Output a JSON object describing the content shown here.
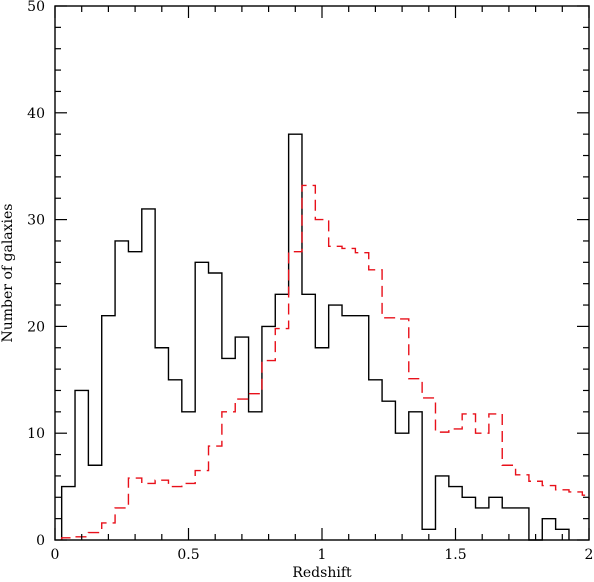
{
  "chart_data": {
    "type": "histogram",
    "xlabel": "Redshift",
    "ylabel": "Number of galaxies",
    "xlim": [
      0,
      2
    ],
    "ylim": [
      0,
      50
    ],
    "x_ticks": [
      0,
      0.5,
      1,
      1.5,
      2
    ],
    "x_tick_labels": [
      "0",
      "0.5",
      "1",
      "1.5",
      "2"
    ],
    "y_ticks": [
      0,
      10,
      20,
      30,
      40,
      50
    ],
    "y_tick_labels": [
      "0",
      "10",
      "20",
      "30",
      "40",
      "50"
    ],
    "grid": false,
    "legend": "none",
    "bin_width": 0.05,
    "series": [
      {
        "style": "solid",
        "color": "#000000",
        "bin_edges": [
          0.025,
          0.075,
          0.125,
          0.175,
          0.225,
          0.275,
          0.325,
          0.375,
          0.425,
          0.475,
          0.525,
          0.575,
          0.625,
          0.675,
          0.725,
          0.775,
          0.825,
          0.875,
          0.925,
          0.975,
          1.025,
          1.075,
          1.125,
          1.175,
          1.225,
          1.275,
          1.325,
          1.375,
          1.425,
          1.475,
          1.525,
          1.575,
          1.625,
          1.675,
          1.725,
          1.775,
          1.825,
          1.875,
          1.925
        ],
        "counts": [
          5,
          14,
          7,
          21,
          28,
          27,
          31,
          18,
          15,
          12,
          26,
          25,
          17,
          19,
          12,
          20,
          23,
          38,
          23,
          18,
          22,
          21,
          21,
          15,
          13,
          10,
          12,
          1,
          6,
          5,
          4,
          3,
          4,
          3,
          3,
          0,
          2,
          1
        ]
      },
      {
        "style": "dashed",
        "color": "#e8101a",
        "bin_edges": [
          0.025,
          0.075,
          0.125,
          0.175,
          0.225,
          0.275,
          0.325,
          0.375,
          0.425,
          0.475,
          0.525,
          0.575,
          0.625,
          0.675,
          0.725,
          0.775,
          0.825,
          0.875,
          0.925,
          0.975,
          1.025,
          1.075,
          1.125,
          1.175,
          1.225,
          1.275,
          1.325,
          1.375,
          1.425,
          1.475,
          1.525,
          1.575,
          1.625,
          1.675,
          1.725,
          1.775,
          1.825,
          1.875,
          1.925,
          1.975,
          2.0
        ],
        "counts": [
          0.2,
          0.3,
          0.7,
          1.6,
          3.0,
          5.8,
          5.3,
          5.6,
          5.0,
          5.3,
          6.5,
          8.8,
          12.0,
          13.2,
          13.7,
          16.8,
          19.8,
          27.0,
          33.2,
          30.0,
          27.5,
          27.3,
          26.9,
          25.3,
          20.8,
          20.7,
          15.1,
          13.3,
          10.1,
          10.4,
          11.8,
          10.0,
          11.8,
          7.0,
          6.1,
          5.5,
          5.1,
          4.7,
          4.5,
          4.2,
          3.8
        ]
      }
    ]
  }
}
